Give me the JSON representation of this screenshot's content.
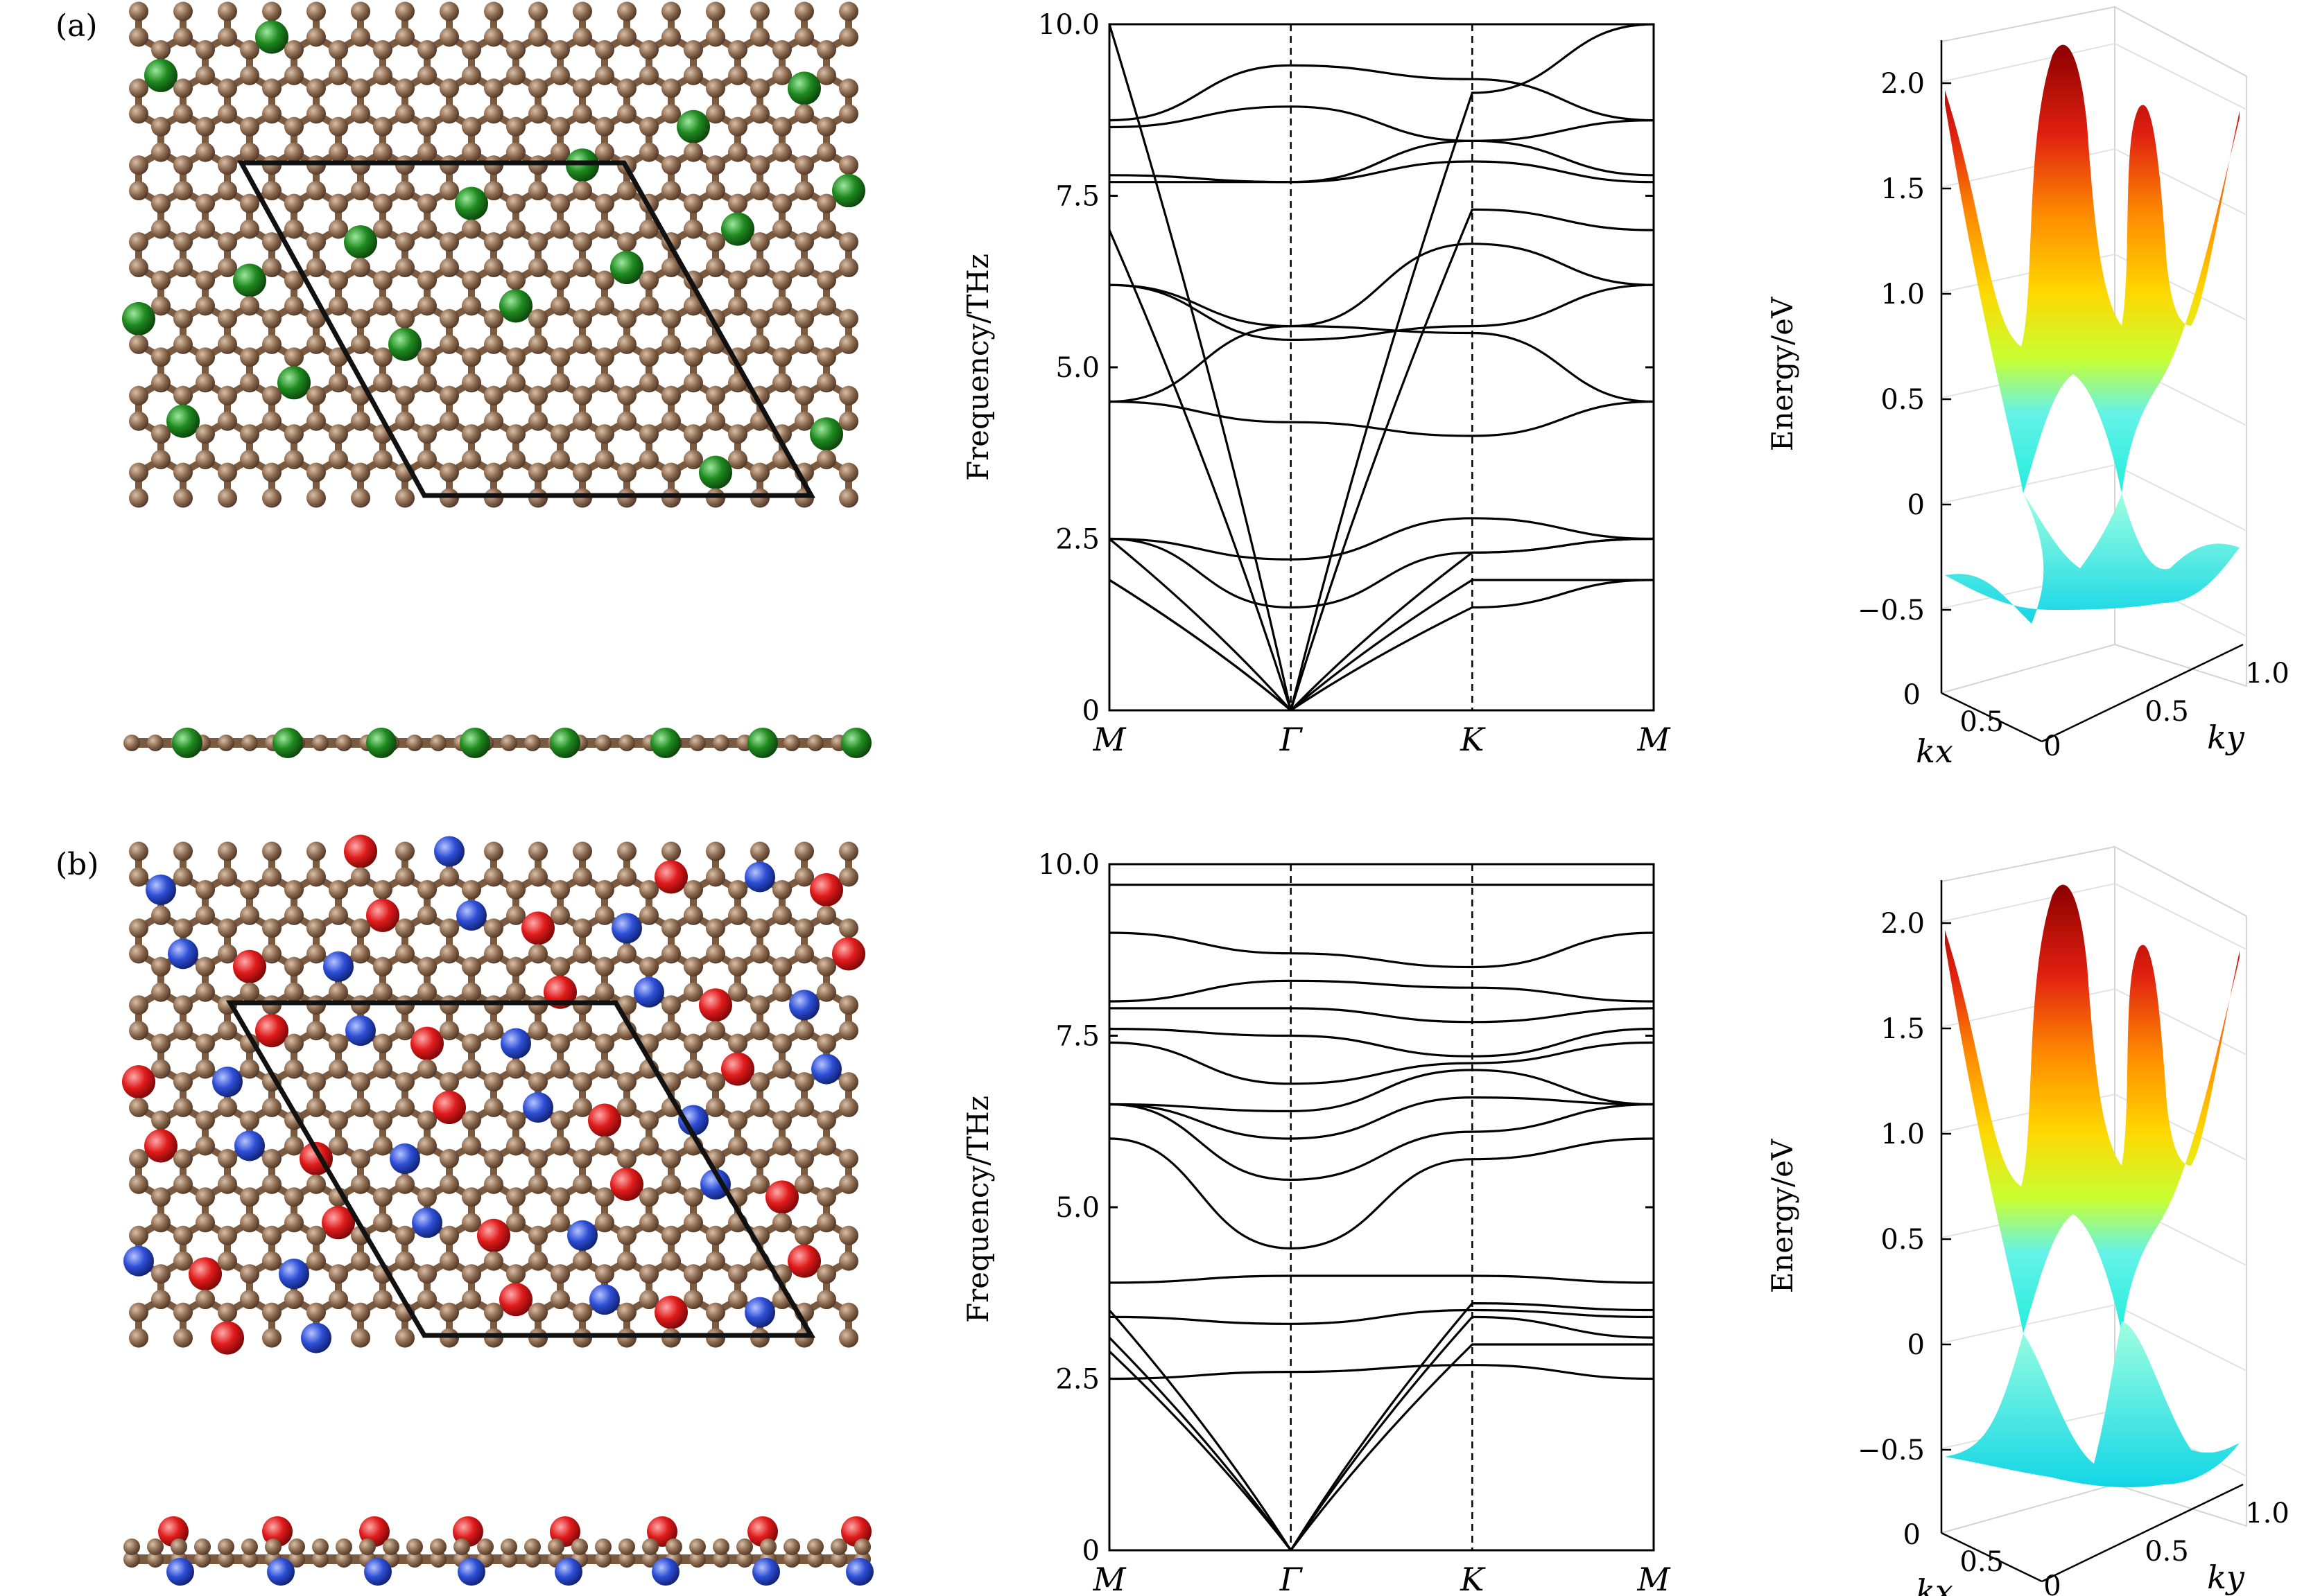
{
  "figure": {
    "panel_labels": [
      "(a)",
      "(b)"
    ],
    "atom_colors": {
      "carbon": "#8c6a4f",
      "green": "#1f8a1f",
      "red": "#e01b1b",
      "blue": "#2e4fd6"
    },
    "surface_colors": [
      "#22eedd",
      "#c8ff33",
      "#ffd700",
      "#ff8c00",
      "#e02010",
      "#8b0000"
    ]
  },
  "chart_data": [
    {
      "type": "line",
      "panel": "a",
      "ylabel": "Frequency/THz",
      "ylim": [
        0,
        10
      ],
      "yticks": [
        "0",
        "2.5",
        "5.0",
        "7.5",
        "10.0"
      ],
      "xticks": [
        "M",
        "Γ",
        "K",
        "M"
      ],
      "x": [
        0,
        1,
        2,
        3
      ],
      "series": [
        {
          "values": [
            1.9,
            0,
            1.5,
            1.9
          ]
        },
        {
          "values": [
            1.9,
            0,
            1.9,
            1.9
          ]
        },
        {
          "values": [
            2.5,
            0,
            2.3,
            2.5
          ]
        },
        {
          "values": [
            2.5,
            1.5,
            2.3,
            2.5
          ]
        },
        {
          "values": [
            2.5,
            2.2,
            2.8,
            2.5
          ]
        },
        {
          "values": [
            4.5,
            4.2,
            4.0,
            4.5
          ]
        },
        {
          "values": [
            4.5,
            5.6,
            5.5,
            4.5
          ]
        },
        {
          "values": [
            6.2,
            5.4,
            5.6,
            6.2
          ]
        },
        {
          "values": [
            6.2,
            5.6,
            6.8,
            6.2
          ]
        },
        {
          "values": [
            7.0,
            0,
            7.3,
            7.0
          ]
        },
        {
          "values": [
            7.7,
            7.7,
            8.0,
            7.7
          ]
        },
        {
          "values": [
            7.8,
            7.7,
            8.3,
            7.8
          ]
        },
        {
          "values": [
            8.5,
            8.8,
            8.3,
            8.6
          ]
        },
        {
          "values": [
            8.6,
            9.4,
            9.2,
            8.6
          ]
        },
        {
          "values": [
            10.0,
            0,
            9.0,
            10.0
          ]
        }
      ]
    },
    {
      "type": "line",
      "panel": "b",
      "ylabel": "Frequency/THz",
      "ylim": [
        0,
        10
      ],
      "yticks": [
        "0",
        "2.5",
        "5.0",
        "7.5",
        "10.0"
      ],
      "xticks": [
        "M",
        "Γ",
        "K",
        "M"
      ],
      "x": [
        0,
        1,
        2,
        3
      ],
      "series": [
        {
          "values": [
            2.5,
            2.6,
            2.7,
            2.5
          ]
        },
        {
          "values": [
            2.9,
            0,
            3.0,
            3.0
          ]
        },
        {
          "values": [
            3.1,
            0,
            3.4,
            3.1
          ]
        },
        {
          "values": [
            3.4,
            3.3,
            3.5,
            3.4
          ]
        },
        {
          "values": [
            3.5,
            0,
            3.6,
            3.5
          ]
        },
        {
          "values": [
            3.9,
            4.0,
            4.0,
            3.9
          ]
        },
        {
          "values": [
            6.0,
            4.4,
            5.7,
            6.0
          ]
        },
        {
          "values": [
            6.5,
            5.4,
            6.1,
            6.5
          ]
        },
        {
          "values": [
            6.5,
            6.0,
            6.6,
            6.5
          ]
        },
        {
          "values": [
            6.5,
            6.4,
            7.0,
            6.5
          ]
        },
        {
          "values": [
            7.4,
            6.8,
            7.1,
            7.4
          ]
        },
        {
          "values": [
            7.6,
            7.5,
            7.2,
            7.6
          ]
        },
        {
          "values": [
            7.9,
            7.9,
            7.7,
            7.9
          ]
        },
        {
          "values": [
            8.0,
            8.3,
            8.2,
            8.0
          ]
        },
        {
          "values": [
            9.0,
            8.7,
            8.5,
            9.0
          ]
        },
        {
          "values": [
            9.7,
            9.7,
            9.7,
            9.7
          ]
        }
      ]
    },
    {
      "type": "surface",
      "panel": "a",
      "zlabel": "Energy/eV",
      "zticks": [
        "−0.5",
        "0",
        "0.5",
        "1.0",
        "1.5",
        "2.0"
      ],
      "kx_ticks": [
        "0.5",
        "0"
      ],
      "ky_ticks": [
        "0",
        "0.5",
        "1.0"
      ],
      "kx_label": "kx",
      "ky_label": "ky"
    },
    {
      "type": "surface",
      "panel": "b",
      "zlabel": "Energy/eV",
      "zticks": [
        "−0.5",
        "0",
        "0.5",
        "1.0",
        "1.5",
        "2.0"
      ],
      "kx_ticks": [
        "0.5",
        "0"
      ],
      "ky_ticks": [
        "0",
        "0.5",
        "1.0"
      ],
      "kx_label": "kx",
      "ky_label": "ky"
    }
  ]
}
